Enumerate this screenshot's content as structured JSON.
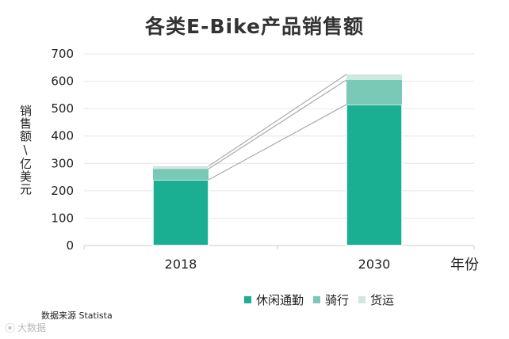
{
  "source_note": "数据来源  Statista",
  "watermark": "大数据",
  "colors": {
    "leisure": "#1aaf93",
    "riding": "#7ac8b6",
    "cargo": "#cfe6e1",
    "grid": "#e6e6e6",
    "axis": "#cccccc",
    "connector": "#aaaaaa"
  },
  "chart_data": {
    "type": "bar",
    "stacked": true,
    "title": "各类E-Bike产品销售额",
    "xlabel": "年份",
    "ylabel": "销售额\\亿美元",
    "categories": [
      "2018",
      "2030"
    ],
    "series": [
      {
        "name": "休闲通勤",
        "values": [
          240,
          515
        ]
      },
      {
        "name": "骑行",
        "values": [
          40,
          90
        ]
      },
      {
        "name": "货运",
        "values": [
          10,
          20
        ]
      }
    ],
    "yticks": [
      0,
      100,
      200,
      300,
      400,
      500,
      600,
      700
    ],
    "ylim": [
      0,
      700
    ],
    "grid": true,
    "legend_position": "bottom"
  }
}
